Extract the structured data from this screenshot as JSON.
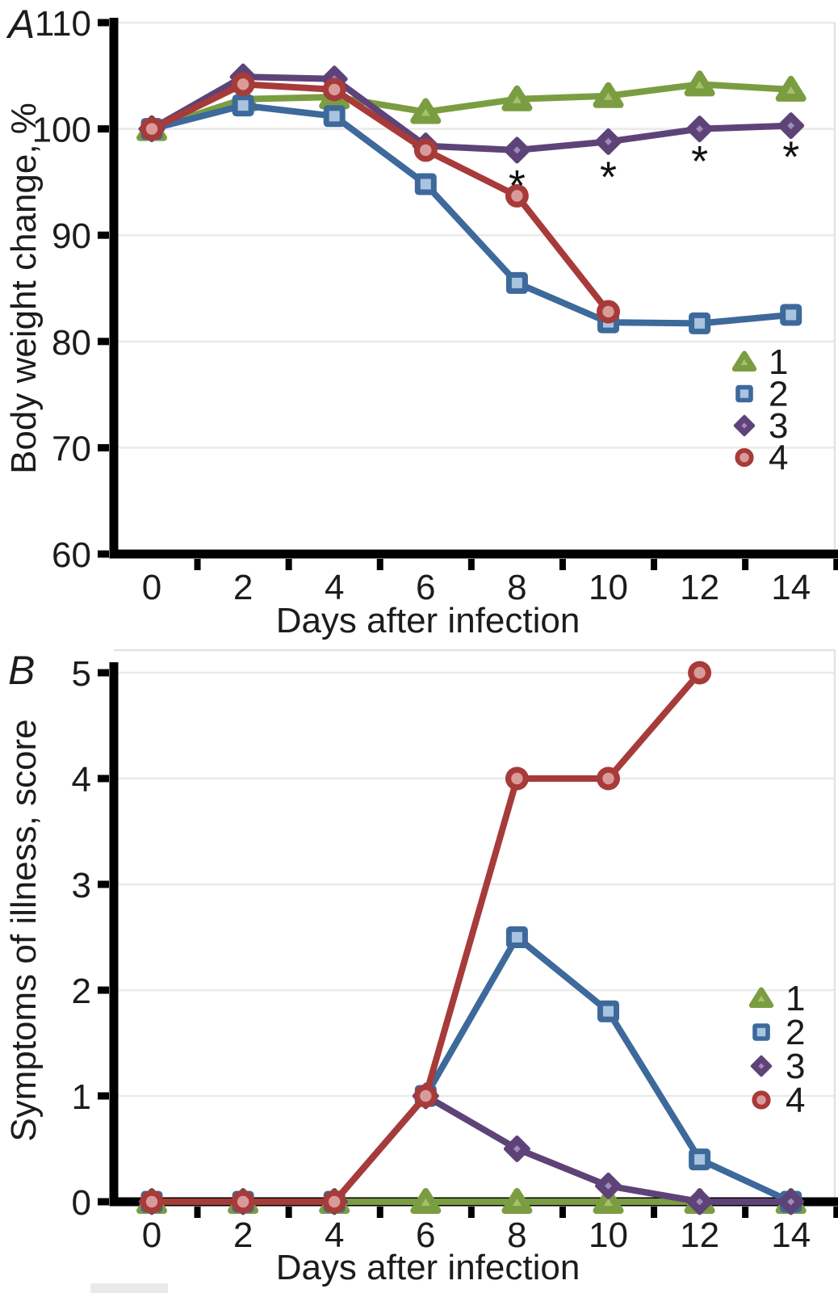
{
  "colors": {
    "grid": "#EAEAEA",
    "plot_border": "#E3E3E3",
    "axis": "#000000",
    "text": "#1c1c1c",
    "series1": "#7B9D41",
    "series1_inner": "#A8C06B",
    "series2": "#3D699B",
    "series2_inner": "#A9C4E0",
    "series3": "#5E4378",
    "series3_inner": "#A08CBC",
    "series4": "#A73B39",
    "series4_inner": "#D89B99"
  },
  "chart_data": [
    {
      "id": "A",
      "type": "line",
      "panel_label": "A",
      "xlabel": "Days after infection",
      "ylabel": "Body weight change, %",
      "x": [
        0,
        2,
        4,
        6,
        8,
        10,
        12,
        14
      ],
      "xticks": [
        0,
        2,
        4,
        6,
        8,
        10,
        12,
        14
      ],
      "minor_xticks": [
        1,
        3,
        5,
        7,
        9,
        11,
        13,
        15
      ],
      "yticks": [
        60,
        70,
        80,
        90,
        100,
        110
      ],
      "ylim": [
        60,
        110
      ],
      "grid": "horizontal",
      "legend_position": "right-middle",
      "series": [
        {
          "name": "1",
          "marker": "triangle",
          "color": "#7B9D41",
          "fill": "#A8C06B",
          "values": [
            100,
            102.8,
            103.0,
            101.6,
            102.8,
            103.1,
            104.2,
            103.7
          ]
        },
        {
          "name": "2",
          "marker": "square",
          "color": "#3D699B",
          "fill": "#A9C4E0",
          "values": [
            100,
            102.2,
            101.2,
            94.8,
            85.5,
            81.8,
            81.7,
            82.5
          ]
        },
        {
          "name": "3",
          "marker": "diamond",
          "color": "#5E4378",
          "fill": "#A08CBC",
          "values": [
            100,
            104.9,
            104.7,
            98.4,
            98.0,
            98.8,
            100.0,
            100.3
          ]
        },
        {
          "name": "4",
          "marker": "circle",
          "color": "#A73B39",
          "fill": "#D89B99",
          "values": [
            100,
            104.2,
            103.7,
            98.0,
            93.7,
            82.8,
            null,
            null
          ]
        }
      ],
      "annotations": [
        {
          "text": "*",
          "x": 8,
          "y": 95.4
        },
        {
          "text": "*",
          "x": 10,
          "y": 96.2
        },
        {
          "text": "*",
          "x": 12,
          "y": 97.7
        },
        {
          "text": "*",
          "x": 14,
          "y": 98.1
        }
      ]
    },
    {
      "id": "B",
      "type": "line",
      "panel_label": "B",
      "xlabel": "Days after infection",
      "ylabel": "Symptoms of illness, score",
      "x": [
        0,
        2,
        4,
        6,
        8,
        10,
        12,
        14
      ],
      "xticks": [
        0,
        2,
        4,
        6,
        8,
        10,
        12,
        14
      ],
      "minor_xticks": [
        1,
        3,
        5,
        7,
        9,
        11,
        13,
        15
      ],
      "yticks": [
        0,
        1,
        2,
        3,
        4,
        5
      ],
      "ylim": [
        0,
        5
      ],
      "grid": "horizontal",
      "legend_position": "right-middle",
      "series": [
        {
          "name": "1",
          "marker": "triangle",
          "color": "#7B9D41",
          "fill": "#A8C06B",
          "values": [
            0,
            0,
            0,
            0,
            0,
            0,
            0,
            0
          ]
        },
        {
          "name": "2",
          "marker": "square",
          "color": "#3D699B",
          "fill": "#A9C4E0",
          "values": [
            0,
            0,
            0,
            1,
            2.5,
            1.8,
            0.4,
            0
          ]
        },
        {
          "name": "3",
          "marker": "diamond",
          "color": "#5E4378",
          "fill": "#A08CBC",
          "values": [
            0,
            0,
            0,
            1,
            0.5,
            0.15,
            0,
            0
          ]
        },
        {
          "name": "4",
          "marker": "circle",
          "color": "#A73B39",
          "fill": "#D89B99",
          "values": [
            0,
            0,
            0,
            1,
            4,
            4,
            5,
            null
          ]
        }
      ],
      "annotations": []
    }
  ]
}
